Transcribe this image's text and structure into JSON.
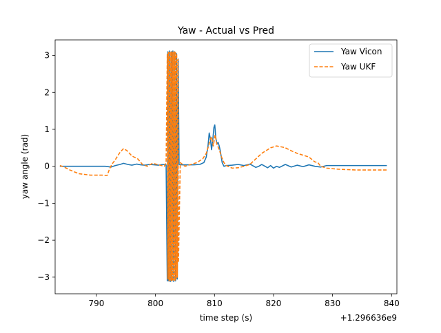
{
  "chart_data": {
    "type": "line",
    "title": "Yaw - Actual vs Pred",
    "xlabel": "time step (s)",
    "ylabel": "yaw angle (rad)",
    "x_offset_text": "+1.296636e9",
    "xlim": [
      783.0,
      840.9
    ],
    "ylim": [
      -3.45,
      3.42
    ],
    "xticks": [
      790,
      800,
      810,
      820,
      830,
      840
    ],
    "yticks": [
      -3,
      -2,
      -1,
      0,
      1,
      2,
      3
    ],
    "legend_position": "upper right",
    "grid": false,
    "series": [
      {
        "name": "Yaw Vicon",
        "color": "#1f77b4",
        "style": "solid",
        "x": [
          783.8,
          786,
          788,
          790,
          791.5,
          792.5,
          793.2,
          794,
          794.6,
          795.3,
          796,
          796.8,
          797.5,
          798.2,
          799,
          799.8,
          800.5,
          801.2,
          801.8,
          802.0,
          802.1,
          802.2,
          802.35,
          802.5,
          802.65,
          802.8,
          802.95,
          803.1,
          803.25,
          803.4,
          803.55,
          803.7,
          803.85,
          804.0,
          804.5,
          805.5,
          806.5,
          807.5,
          808.2,
          808.6,
          808.9,
          809.1,
          809.3,
          809.5,
          809.7,
          809.9,
          810.05,
          810.2,
          810.4,
          810.6,
          810.8,
          811.0,
          811.3,
          811.6,
          812.0,
          813,
          814,
          815,
          816,
          817,
          817.5,
          818,
          819,
          819.5,
          820,
          820.5,
          821,
          822,
          823,
          824,
          825,
          826,
          827,
          828,
          829,
          830,
          833,
          836,
          839.2
        ],
        "y": [
          0.0,
          0.0,
          0.0,
          0.0,
          0.0,
          -0.02,
          0.02,
          0.05,
          0.08,
          0.05,
          0.03,
          0.06,
          0.04,
          0.03,
          0.05,
          0.04,
          0.03,
          0.05,
          0.04,
          -3.1,
          3.1,
          -3.1,
          3.12,
          -3.12,
          3.1,
          -3.1,
          3.12,
          -3.12,
          3.1,
          -3.1,
          3.05,
          -3.05,
          2.9,
          0.05,
          0.04,
          0.04,
          0.04,
          0.05,
          0.1,
          0.25,
          0.55,
          0.9,
          0.75,
          0.45,
          0.7,
          1.05,
          1.12,
          0.8,
          0.6,
          0.65,
          0.55,
          0.4,
          0.1,
          0.0,
          0.02,
          0.03,
          0.05,
          0.02,
          0.06,
          -0.03,
          0.0,
          0.05,
          -0.04,
          0.02,
          -0.05,
          0.0,
          -0.03,
          0.05,
          -0.02,
          0.03,
          -0.01,
          0.04,
          0.0,
          -0.02,
          0.02,
          0.02,
          0.02,
          0.02,
          0.02
        ]
      },
      {
        "name": "Yaw UKF",
        "color": "#ff7f0e",
        "style": "dashed",
        "x": [
          783.8,
          784.5,
          785.5,
          787,
          789,
          791,
          791.8,
          792.2,
          792.6,
          793.2,
          794,
          794.6,
          795.2,
          796,
          797,
          797.8,
          798.6,
          799.5,
          800.3,
          801,
          801.5,
          801.8,
          802.0,
          802.1,
          802.2,
          802.3,
          802.4,
          802.5,
          802.6,
          802.7,
          802.8,
          802.9,
          803.0,
          803.1,
          803.2,
          803.3,
          803.4,
          803.5,
          803.6,
          803.7,
          803.8,
          803.9,
          804.2,
          805,
          806,
          807,
          808,
          808.6,
          809.0,
          809.2,
          809.5,
          809.8,
          810.1,
          810.4,
          810.8,
          811.2,
          811.6,
          812,
          813,
          814,
          815,
          816,
          817,
          818,
          819,
          819.5,
          820.5,
          821.5,
          822,
          823,
          824,
          825,
          826,
          827,
          827.5,
          828,
          829,
          831,
          834,
          839.2
        ],
        "y": [
          0.02,
          -0.02,
          -0.1,
          -0.2,
          -0.24,
          -0.24,
          -0.25,
          -0.08,
          0.05,
          0.18,
          0.38,
          0.48,
          0.42,
          0.28,
          0.2,
          0.05,
          0.0,
          0.08,
          0.05,
          0.02,
          0.0,
          0.1,
          3.05,
          -3.05,
          3.1,
          -3.1,
          3.08,
          -3.08,
          3.1,
          -3.1,
          3.1,
          -3.1,
          3.08,
          -3.08,
          3.1,
          -3.1,
          3.08,
          -3.05,
          3.05,
          -3.0,
          2.9,
          -2.6,
          0.1,
          0.0,
          0.05,
          0.1,
          0.2,
          0.35,
          0.55,
          0.7,
          0.8,
          0.55,
          0.85,
          0.6,
          0.45,
          0.25,
          0.1,
          0.02,
          -0.05,
          -0.04,
          0.0,
          0.05,
          0.2,
          0.35,
          0.45,
          0.5,
          0.55,
          0.52,
          0.5,
          0.42,
          0.35,
          0.3,
          0.25,
          0.12,
          0.1,
          0.0,
          -0.05,
          -0.08,
          -0.1,
          -0.1
        ]
      }
    ]
  }
}
